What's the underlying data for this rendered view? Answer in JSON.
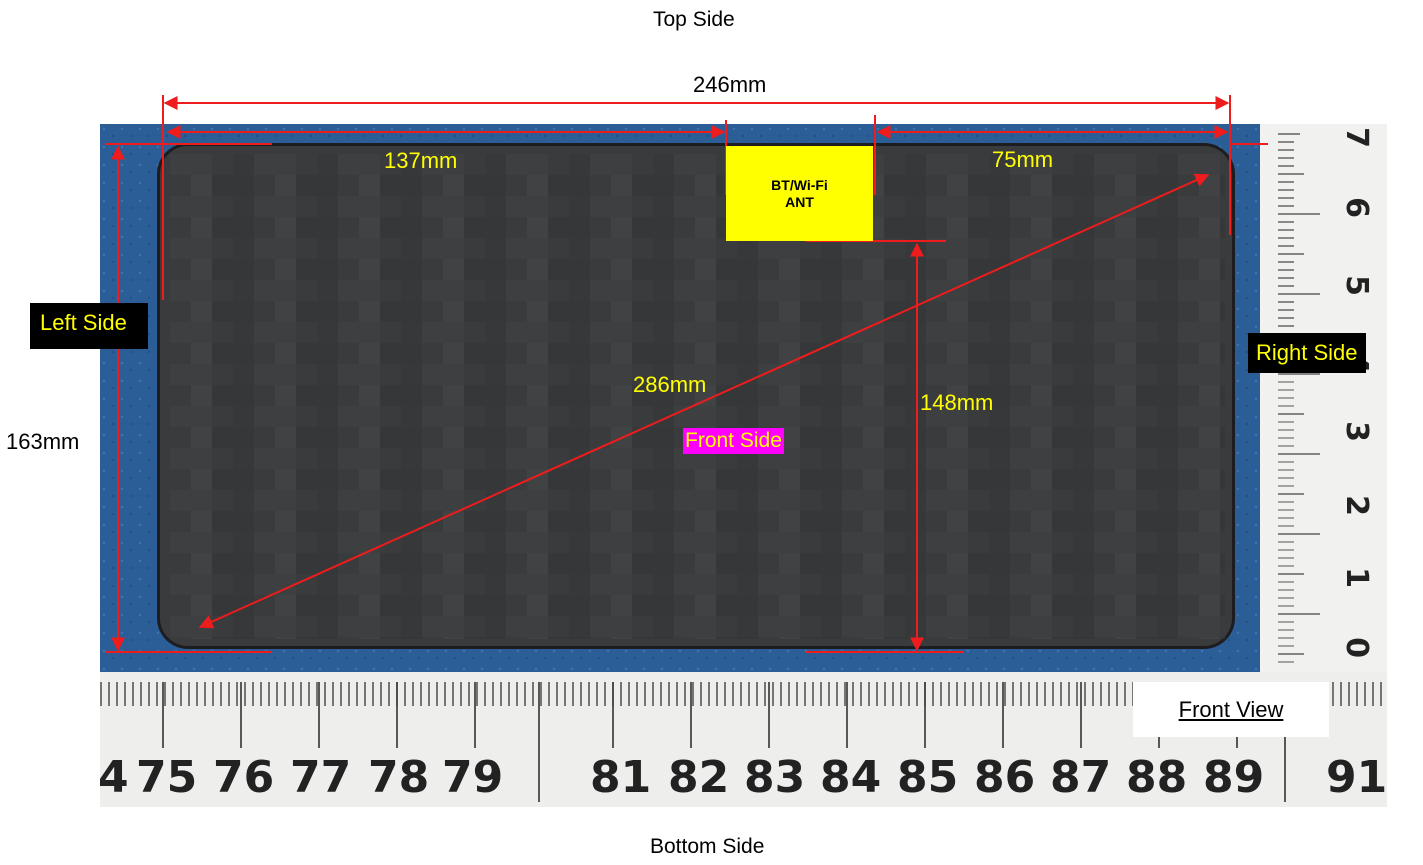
{
  "labels": {
    "top_side": "Top Side",
    "bottom_side": "Bottom Side",
    "left_side": "Left Side",
    "right_side": "Right Side",
    "front_side": "Front Side",
    "front_view": "Front View",
    "antenna_line1": "BT/Wi-Fi",
    "antenna_line2": "ANT"
  },
  "dimensions": {
    "overall_width": "246mm",
    "left_to_antenna": "137mm",
    "antenna_to_right": "75mm",
    "diagonal": "286mm",
    "antenna_to_bottom": "148mm",
    "overall_height": "163mm"
  },
  "ruler_bottom": [
    "4",
    "75",
    "76",
    "77",
    "78",
    "79",
    "81",
    "82",
    "83",
    "84",
    "85",
    "86",
    "87",
    "88",
    "89",
    "91"
  ],
  "ruler_right": [
    "7",
    "6",
    "5",
    "4",
    "3",
    "2",
    "1",
    "0"
  ],
  "colors": {
    "background_mat": "#2a5f9a",
    "device": "#3a3b3d",
    "annotation": "#ee1c1c",
    "label_yellow": "#ffff00",
    "tag_magenta": "#ff00ff"
  }
}
